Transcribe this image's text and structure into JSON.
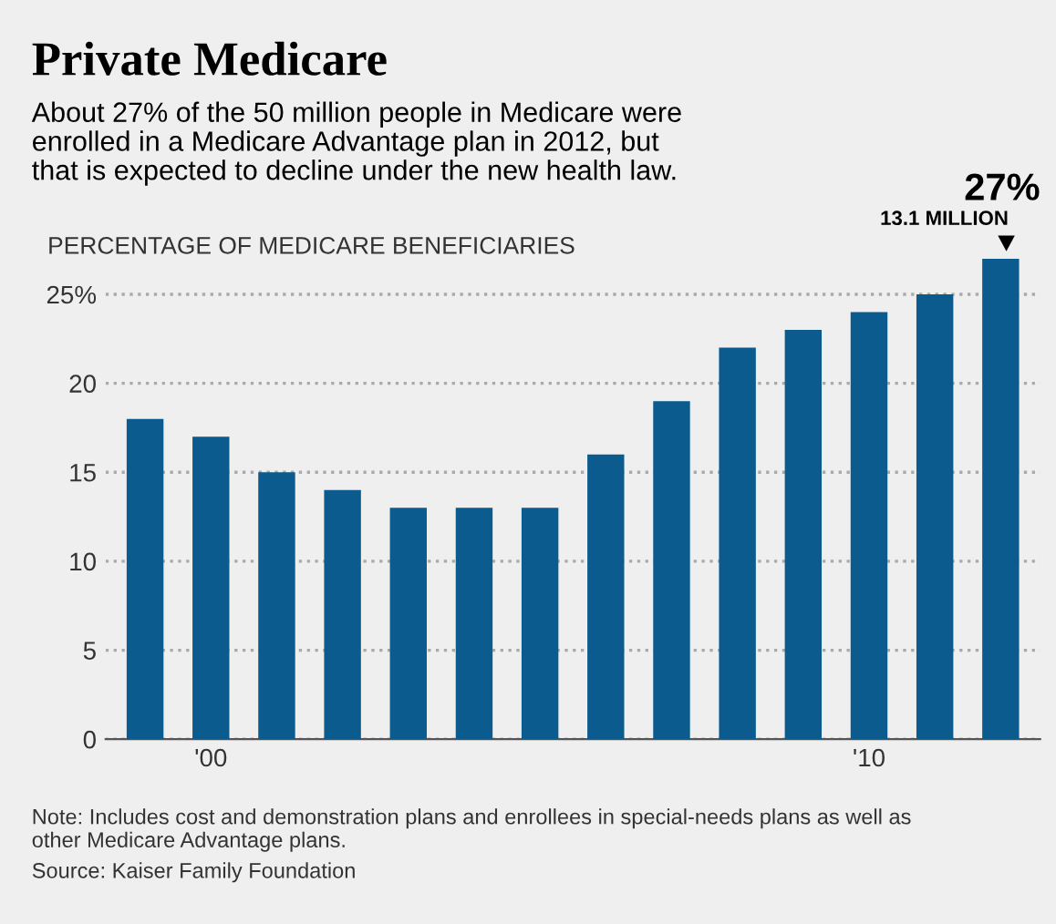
{
  "chart_data": {
    "type": "bar",
    "title": "Private Medicare",
    "subtitle": "About 27% of the 50 million people in Medicare were\nenrolled in a Medicare Advantage plan in 2012, but\nthat is expected to decline under the new health law.",
    "ylabel": "PERCENTAGE OF MEDICARE BENEFICIARIES",
    "categories": [
      null,
      "'00",
      null,
      null,
      null,
      null,
      null,
      null,
      null,
      null,
      null,
      "'10",
      null,
      null
    ],
    "values": [
      18,
      17,
      15,
      14,
      13,
      13,
      13,
      16,
      19,
      22,
      23,
      24,
      25,
      27
    ],
    "color": "#0b5b8e",
    "ylim": [
      0,
      27
    ],
    "yticks": [
      0,
      5,
      10,
      15,
      20,
      {
        "value": 25,
        "label": "25%"
      }
    ],
    "grid": "y",
    "annotations": [
      "27%",
      "13.1 MILLION",
      "Note: Includes cost and demonstration plans and enrollees in special-needs plans as well as\nother Medicare Advantage plans.",
      "Source: Kaiser Family Foundation"
    ]
  }
}
